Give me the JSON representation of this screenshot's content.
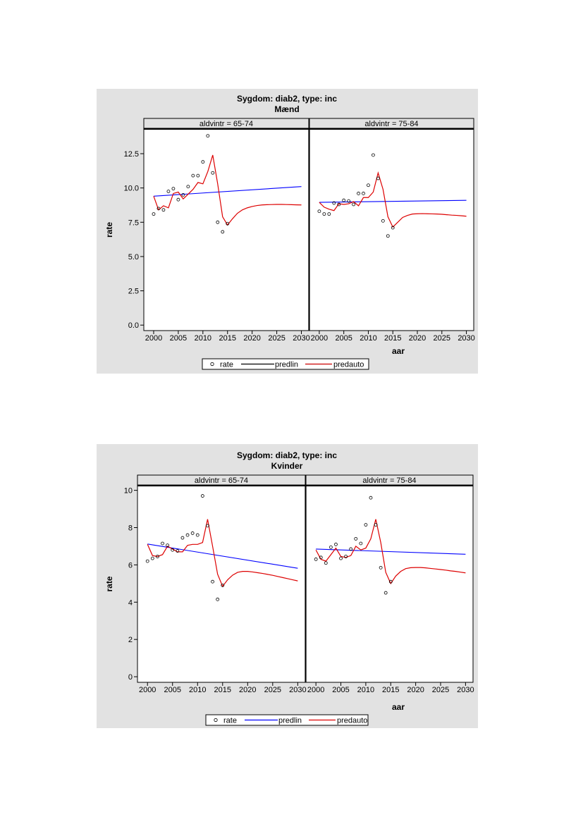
{
  "chart_data": [
    {
      "type": "line",
      "title": "Sygdom: diab2, type: inc",
      "subtitle": "Mænd",
      "xlabel": "aar",
      "ylabel": "rate",
      "xlim": [
        1998,
        2031.5
      ],
      "ylim": [
        -0.4,
        14.3
      ],
      "xticks": [
        2000,
        2005,
        2010,
        2015,
        2020,
        2025,
        2030
      ],
      "yticks": [
        0,
        2.5,
        5,
        7.5,
        10,
        12.5
      ],
      "ytick_labels": [
        "0.0",
        "2.5",
        "5.0",
        "7.5",
        "10.0",
        "12.5"
      ],
      "legend": {
        "position": "bottom",
        "items": [
          {
            "label": "rate",
            "kind": "marker",
            "color": "#000000"
          },
          {
            "label": "predlin",
            "kind": "line",
            "color": "#000000"
          },
          {
            "label": "predauto",
            "kind": "line",
            "color": "#cc0000"
          }
        ]
      },
      "panels": [
        {
          "label": "aldvintr = 65-74",
          "rate": {
            "x": [
              2000,
              2001,
              2002,
              2003,
              2004,
              2005,
              2006,
              2007,
              2008,
              2009,
              2010,
              2011,
              2012,
              2013,
              2014,
              2015
            ],
            "y": [
              8.1,
              8.5,
              8.4,
              9.75,
              9.95,
              9.15,
              9.5,
              10.1,
              10.9,
              10.9,
              11.9,
              13.8,
              11.1,
              7.5,
              6.8,
              7.4
            ]
          },
          "predlin": {
            "x": [
              2000,
              2030
            ],
            "y": [
              9.4,
              10.1
            ],
            "color": "#0000ff"
          },
          "predauto": {
            "x": [
              2000,
              2001,
              2002,
              2003,
              2004,
              2005,
              2006,
              2007,
              2008,
              2009,
              2010,
              2011,
              2012,
              2013,
              2014,
              2015,
              2016,
              2017,
              2018,
              2019,
              2020,
              2021,
              2022,
              2023,
              2024,
              2025,
              2026,
              2027,
              2028,
              2029,
              2030
            ],
            "y": [
              9.4,
              8.4,
              8.7,
              8.55,
              9.6,
              9.7,
              9.2,
              9.55,
              9.9,
              10.4,
              10.3,
              11.2,
              12.4,
              10.3,
              7.9,
              7.3,
              7.75,
              8.15,
              8.4,
              8.55,
              8.65,
              8.72,
              8.76,
              8.78,
              8.79,
              8.8,
              8.8,
              8.79,
              8.78,
              8.77,
              8.76
            ],
            "color": "#dd0000"
          }
        },
        {
          "label": "aldvintr = 75-84",
          "rate": {
            "x": [
              2000,
              2001,
              2002,
              2003,
              2004,
              2005,
              2006,
              2007,
              2008,
              2009,
              2010,
              2011,
              2012,
              2013,
              2014,
              2015
            ],
            "y": [
              8.3,
              8.1,
              8.1,
              8.9,
              8.8,
              9.1,
              9.05,
              8.8,
              9.6,
              9.6,
              10.2,
              12.4,
              10.7,
              7.6,
              6.5,
              7.1
            ]
          },
          "predlin": {
            "x": [
              2000,
              2030
            ],
            "y": [
              8.95,
              9.1
            ],
            "color": "#0000ff"
          },
          "predauto": {
            "x": [
              2000,
              2001,
              2002,
              2003,
              2004,
              2005,
              2006,
              2007,
              2008,
              2009,
              2010,
              2011,
              2012,
              2013,
              2014,
              2015,
              2016,
              2017,
              2018,
              2019,
              2020,
              2021,
              2022,
              2023,
              2024,
              2025,
              2026,
              2027,
              2028,
              2029,
              2030
            ],
            "y": [
              8.95,
              8.6,
              8.45,
              8.35,
              8.85,
              8.8,
              8.85,
              9.0,
              8.7,
              9.3,
              9.3,
              9.7,
              11.1,
              9.9,
              7.9,
              7.15,
              7.5,
              7.85,
              8.0,
              8.1,
              8.12,
              8.13,
              8.12,
              8.11,
              8.1,
              8.08,
              8.05,
              8.02,
              8.0,
              7.97,
              7.94
            ],
            "color": "#dd0000"
          }
        }
      ]
    },
    {
      "type": "line",
      "title": "Sygdom: diab2, type: inc",
      "subtitle": "Kvinder",
      "xlabel": "aar",
      "ylabel": "rate",
      "xlim": [
        1998,
        2031.5
      ],
      "ylim": [
        -0.3,
        10.25
      ],
      "xticks": [
        2000,
        2005,
        2010,
        2015,
        2020,
        2025,
        2030
      ],
      "yticks": [
        0,
        2,
        4,
        6,
        8,
        10
      ],
      "ytick_labels": [
        "0",
        "2",
        "4",
        "6",
        "8",
        "10"
      ],
      "legend": {
        "position": "bottom",
        "items": [
          {
            "label": "rate",
            "kind": "marker",
            "color": "#000000"
          },
          {
            "label": "predlin",
            "kind": "line",
            "color": "#0000ff"
          },
          {
            "label": "predauto",
            "kind": "line",
            "color": "#dd0000"
          }
        ]
      },
      "panels": [
        {
          "label": "aldvintr = 65-74",
          "rate": {
            "x": [
              2000,
              2001,
              2002,
              2003,
              2004,
              2005,
              2006,
              2007,
              2008,
              2009,
              2010,
              2011,
              2012,
              2013,
              2014,
              2015
            ],
            "y": [
              6.2,
              6.35,
              6.45,
              7.15,
              7.05,
              6.8,
              6.75,
              7.45,
              7.6,
              7.7,
              7.6,
              9.7,
              8.1,
              5.1,
              4.15,
              4.9
            ]
          },
          "predlin": {
            "x": [
              2000,
              2030
            ],
            "y": [
              7.12,
              5.82
            ],
            "color": "#0000ff"
          },
          "predauto": {
            "x": [
              2000,
              2001,
              2002,
              2003,
              2004,
              2005,
              2006,
              2007,
              2008,
              2009,
              2010,
              2011,
              2012,
              2013,
              2014,
              2015,
              2016,
              2017,
              2018,
              2019,
              2020,
              2021,
              2022,
              2023,
              2024,
              2025,
              2026,
              2027,
              2028,
              2029,
              2030
            ],
            "y": [
              7.1,
              6.5,
              6.45,
              6.55,
              7.0,
              6.85,
              6.7,
              6.7,
              7.05,
              7.1,
              7.1,
              7.2,
              8.45,
              7.0,
              5.5,
              4.85,
              5.2,
              5.45,
              5.6,
              5.65,
              5.65,
              5.62,
              5.58,
              5.54,
              5.49,
              5.44,
              5.38,
              5.32,
              5.26,
              5.2,
              5.14
            ],
            "color": "#dd0000"
          }
        },
        {
          "label": "aldvintr = 75-84",
          "rate": {
            "x": [
              2000,
              2001,
              2002,
              2003,
              2004,
              2005,
              2006,
              2007,
              2008,
              2009,
              2010,
              2011,
              2012,
              2013,
              2014,
              2015
            ],
            "y": [
              6.3,
              6.4,
              6.1,
              6.95,
              7.1,
              6.35,
              6.45,
              6.85,
              7.4,
              7.15,
              8.15,
              9.6,
              8.15,
              5.85,
              4.5,
              5.1
            ]
          },
          "predlin": {
            "x": [
              2000,
              2030
            ],
            "y": [
              6.85,
              6.57
            ],
            "color": "#0000ff"
          },
          "predauto": {
            "x": [
              2000,
              2001,
              2002,
              2003,
              2004,
              2005,
              2006,
              2007,
              2008,
              2009,
              2010,
              2011,
              2012,
              2013,
              2014,
              2015,
              2016,
              2017,
              2018,
              2019,
              2020,
              2021,
              2022,
              2023,
              2024,
              2025,
              2026,
              2027,
              2028,
              2029,
              2030
            ],
            "y": [
              6.8,
              6.3,
              6.2,
              6.55,
              6.9,
              6.45,
              6.4,
              6.5,
              7.0,
              6.8,
              6.9,
              7.4,
              8.45,
              7.2,
              5.6,
              5.0,
              5.4,
              5.65,
              5.8,
              5.85,
              5.86,
              5.86,
              5.84,
              5.81,
              5.78,
              5.75,
              5.72,
              5.68,
              5.65,
              5.61,
              5.57
            ],
            "color": "#dd0000"
          }
        }
      ]
    }
  ]
}
